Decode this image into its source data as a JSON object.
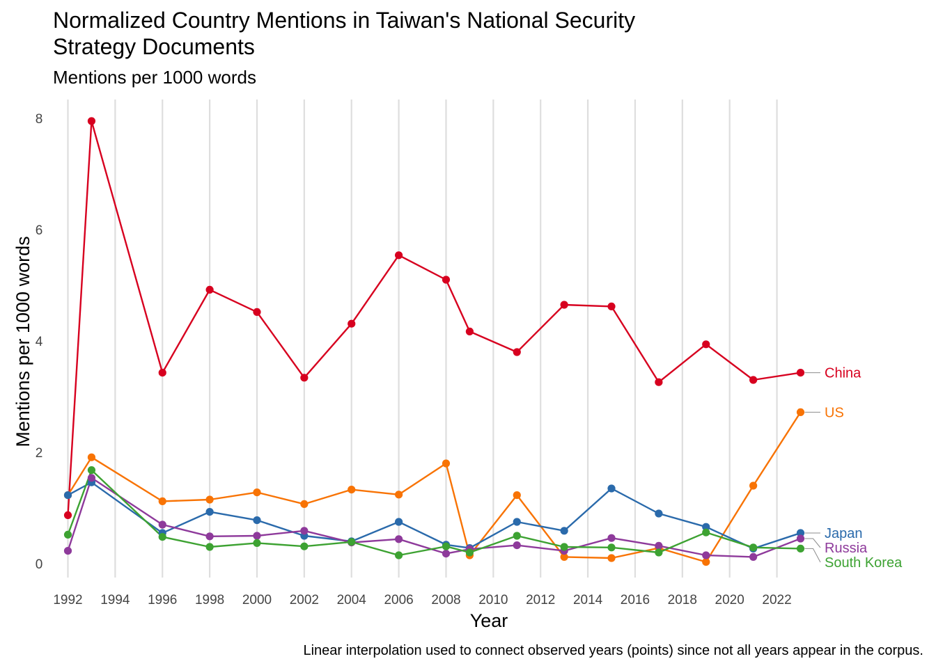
{
  "chart_data": {
    "type": "line",
    "title": "Normalized Country Mentions in Taiwan's National Security Strategy Documents",
    "title_lines": [
      "Normalized Country Mentions in Taiwan's National Security",
      "Strategy Documents"
    ],
    "subtitle": "Mentions per 1000 words",
    "xlabel": "Year",
    "ylabel": "Mentions per 1000 words",
    "caption": "Linear interpolation used to connect observed years (points) since not all years appear in the corpus.",
    "xlim": [
      1992,
      2023
    ],
    "ylim": [
      -0.2,
      8.2
    ],
    "x_ticks": [
      1992,
      1994,
      1996,
      1998,
      2000,
      2002,
      2004,
      2006,
      2008,
      2010,
      2012,
      2014,
      2016,
      2018,
      2020,
      2022
    ],
    "y_ticks": [
      0,
      2,
      4,
      6,
      8
    ],
    "grid": "vertical major",
    "legend": "direct labels at line ends (right)",
    "x": [
      1992,
      1993,
      1996,
      1998,
      2000,
      2002,
      2004,
      2006,
      2008,
      2009,
      2011,
      2013,
      2015,
      2017,
      2019,
      2021,
      2023
    ],
    "series": [
      {
        "name": "China",
        "color": "#d7001f",
        "values": [
          0.87,
          7.95,
          3.43,
          4.92,
          4.52,
          3.34,
          4.31,
          5.54,
          5.1,
          4.17,
          3.8,
          4.65,
          4.62,
          3.26,
          3.94,
          3.3,
          3.43
        ]
      },
      {
        "name": "US",
        "color": "#f87304",
        "values": [
          1.23,
          1.91,
          1.12,
          1.15,
          1.28,
          1.07,
          1.33,
          1.24,
          1.8,
          0.15,
          1.23,
          0.12,
          0.1,
          0.28,
          0.03,
          1.4,
          2.72
        ]
      },
      {
        "name": "Japan",
        "color": "#2a6aab",
        "values": [
          1.23,
          1.46,
          0.55,
          0.93,
          0.78,
          0.5,
          0.4,
          0.75,
          0.34,
          0.28,
          0.75,
          0.59,
          1.35,
          0.9,
          0.66,
          0.27,
          0.55
        ]
      },
      {
        "name": "Russia",
        "color": "#8e3a9b",
        "values": [
          0.23,
          1.54,
          0.7,
          0.49,
          0.5,
          0.59,
          0.38,
          0.44,
          0.18,
          0.26,
          0.33,
          0.23,
          0.46,
          0.32,
          0.15,
          0.12,
          0.45
        ]
      },
      {
        "name": "South Korea",
        "color": "#3da232",
        "values": [
          0.52,
          1.68,
          0.48,
          0.3,
          0.37,
          0.31,
          0.39,
          0.15,
          0.31,
          0.2,
          0.5,
          0.3,
          0.29,
          0.2,
          0.56,
          0.29,
          0.27
        ]
      }
    ]
  }
}
